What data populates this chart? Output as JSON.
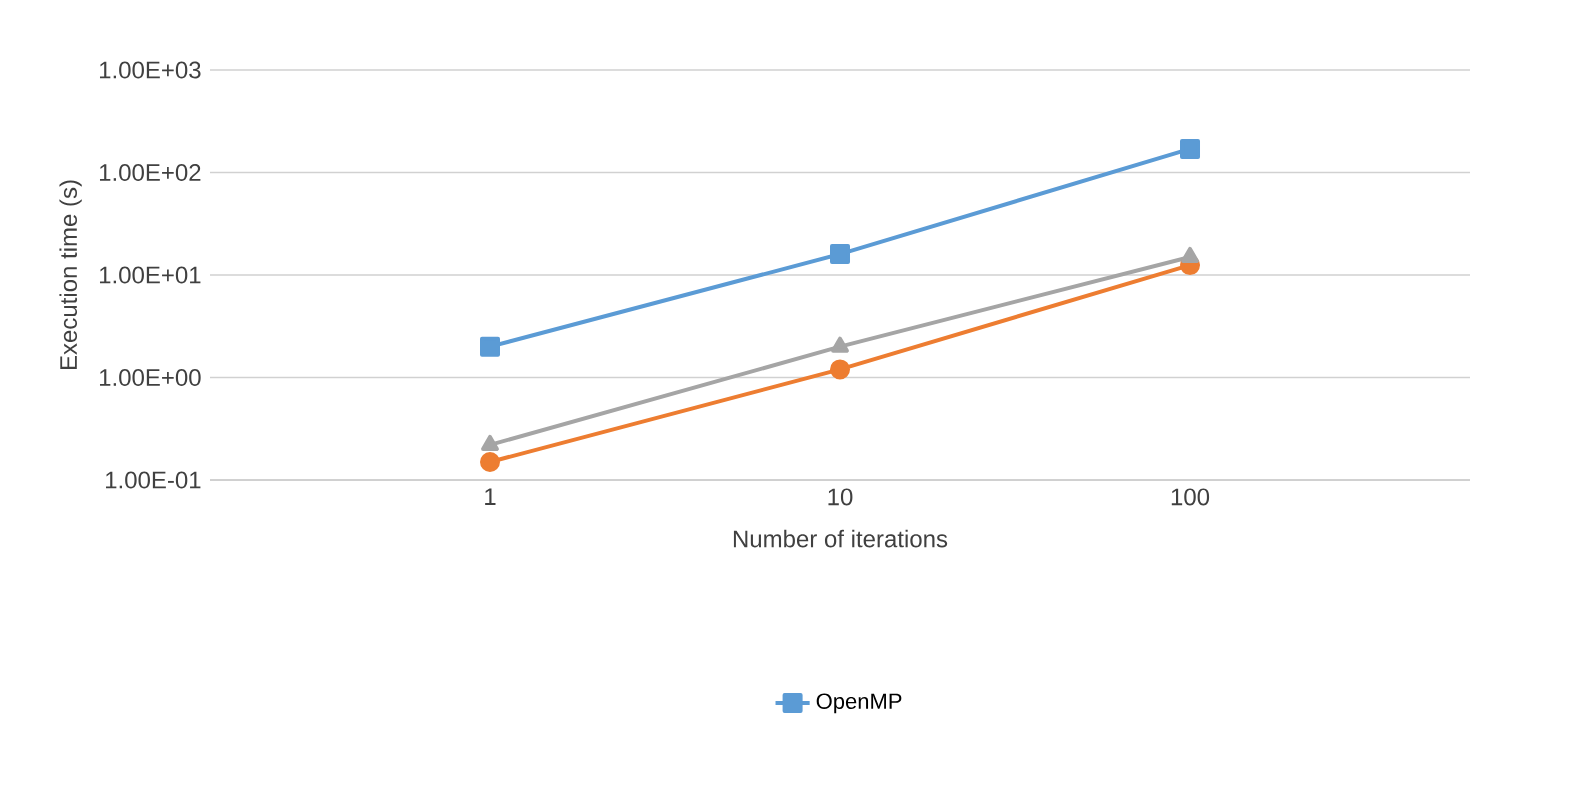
{
  "chart_data": {
    "type": "line",
    "xlabel": "Number of  iterations",
    "ylabel": "Execution time (s)",
    "categories": [
      "1",
      "10",
      "100"
    ],
    "series": [
      {
        "name": "OpenMP",
        "color": "#5b9bd5",
        "marker": "square",
        "values": [
          2.0,
          16,
          170
        ]
      },
      {
        "color": "#ed7d31",
        "marker": "circle",
        "values": [
          0.15,
          1.2,
          12.5
        ]
      },
      {
        "color": "#a5a5a5",
        "marker": "triangle",
        "values": [
          0.22,
          2.0,
          15
        ]
      }
    ],
    "log": "y",
    "ylim": [
      0.1,
      1000
    ],
    "yticks": [
      {
        "value": 0.1,
        "label": "1.00E-01"
      },
      {
        "value": 1,
        "label": "1.00E+00"
      },
      {
        "value": 10,
        "label": "1.00E+01"
      },
      {
        "value": 100,
        "label": "1.00E+02"
      },
      {
        "value": 1000,
        "label": "1.00E+03"
      }
    ],
    "grid": "y",
    "legend": "bottom",
    "line_style": "solid"
  }
}
